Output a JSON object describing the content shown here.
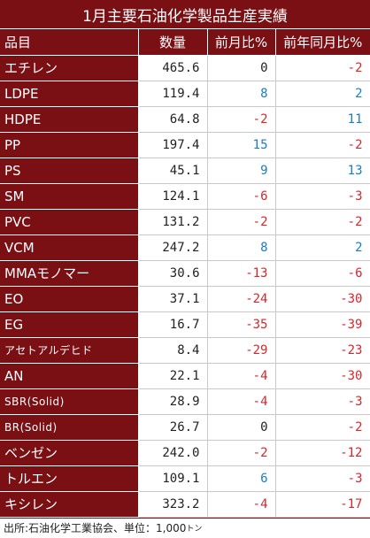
{
  "title": "1月主要石油化学製品生産実績",
  "headers": {
    "name": "品目",
    "qty": "数量",
    "mom": "前月比%",
    "yoy": "前年同月比%"
  },
  "rows": [
    {
      "name": "エチレン",
      "qty": "465.6",
      "mom": "0",
      "yoy": "-2"
    },
    {
      "name": "LDPE",
      "qty": "119.4",
      "mom": "8",
      "yoy": "2"
    },
    {
      "name": "HDPE",
      "qty": "64.8",
      "mom": "-2",
      "yoy": "11"
    },
    {
      "name": "PP",
      "qty": "197.4",
      "mom": "15",
      "yoy": "-2"
    },
    {
      "name": "PS",
      "qty": "45.1",
      "mom": "9",
      "yoy": "13"
    },
    {
      "name": "SM",
      "qty": "124.1",
      "mom": "-6",
      "yoy": "-3"
    },
    {
      "name": "PVC",
      "qty": "131.2",
      "mom": "-2",
      "yoy": "-2"
    },
    {
      "name": "VCM",
      "qty": "247.2",
      "mom": "8",
      "yoy": "2"
    },
    {
      "name": "MMAモノマー",
      "qty": "30.6",
      "mom": "-13",
      "yoy": "-6"
    },
    {
      "name": "EO",
      "qty": "37.1",
      "mom": "-24",
      "yoy": "-30"
    },
    {
      "name": "EG",
      "qty": "16.7",
      "mom": "-35",
      "yoy": "-39"
    },
    {
      "name": "アセトアルデヒド",
      "qty": "8.4",
      "mom": "-29",
      "yoy": "-23"
    },
    {
      "name": "AN",
      "qty": "22.1",
      "mom": "-4",
      "yoy": "-30"
    },
    {
      "name": "SBR(Solid)",
      "qty": "28.9",
      "mom": "-4",
      "yoy": "-3"
    },
    {
      "name": "BR(Solid)",
      "qty": "26.7",
      "mom": "0",
      "yoy": "-2"
    },
    {
      "name": "ベンゼン",
      "qty": "242.0",
      "mom": "-2",
      "yoy": "-12"
    },
    {
      "name": "トルエン",
      "qty": "109.1",
      "mom": "6",
      "yoy": "-3"
    },
    {
      "name": "キシレン",
      "qty": "323.2",
      "mom": "-4",
      "yoy": "-17"
    }
  ],
  "footer": {
    "text": "出所:石油化学工業協会、単位：1,000",
    "unit": "トン"
  },
  "colors": {
    "header_bg": "#7a0f14",
    "negative": "#d9262b",
    "positive": "#1b7dbf"
  }
}
